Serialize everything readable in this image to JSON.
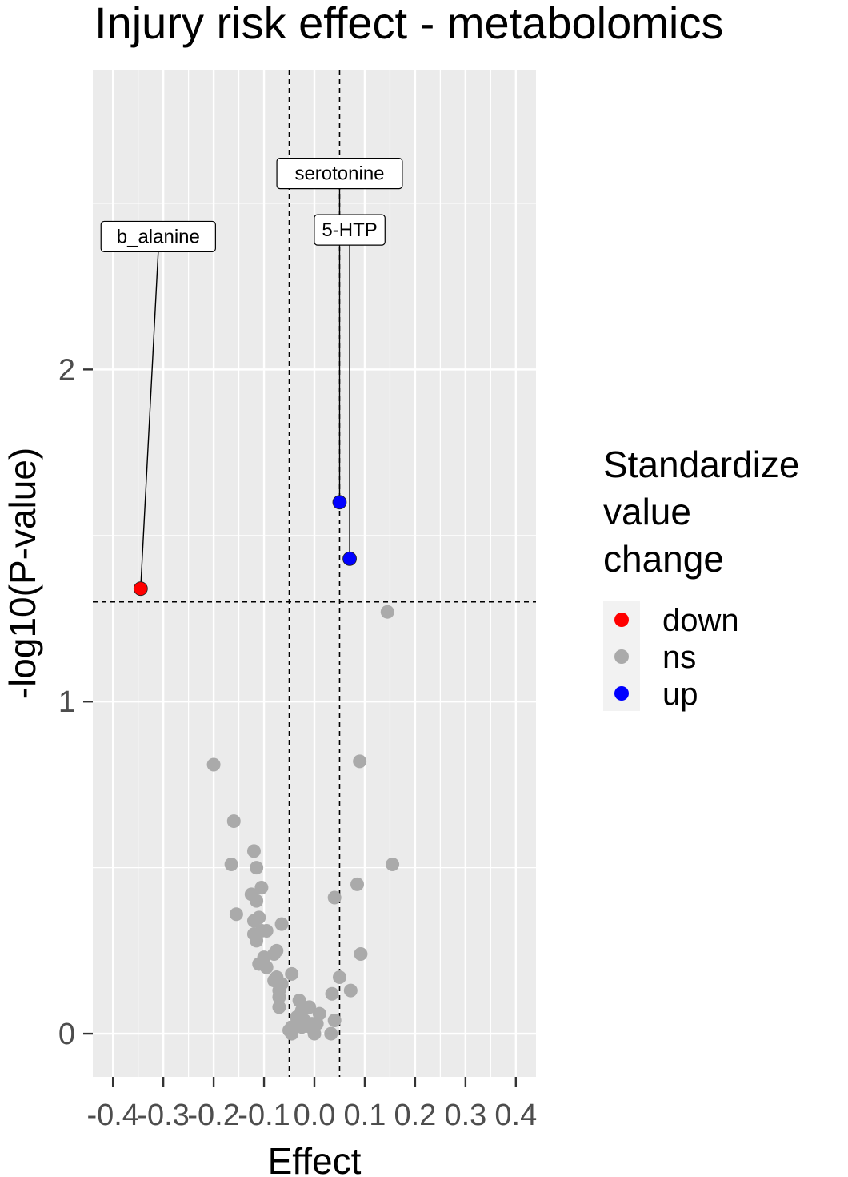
{
  "chart_data": {
    "type": "scatter",
    "title": "Injury risk effect - metabolomics",
    "xlabel": "Effect",
    "ylabel": "-log10(P-value)",
    "xlim": [
      -0.44,
      0.44
    ],
    "ylim": [
      -0.13,
      2.9
    ],
    "x_ticks": [
      -0.4,
      -0.3,
      -0.2,
      -0.1,
      0.0,
      0.1,
      0.2,
      0.3,
      0.4
    ],
    "x_tick_labels": [
      "-0.4",
      "-0.3",
      "-0.2",
      "-0.1",
      "0.0",
      "0.1",
      "0.2",
      "0.3",
      "0.4"
    ],
    "y_ticks": [
      0,
      1,
      2
    ],
    "y_tick_labels": [
      "0",
      "1",
      "2"
    ],
    "grid": true,
    "threshold_lines": {
      "vertical": [
        -0.05,
        0.05
      ],
      "horizontal": [
        1.3
      ]
    },
    "legend": {
      "title": "Standardize value change",
      "title_lines": [
        "Standardize",
        "value",
        "change"
      ],
      "position": "right",
      "items": [
        {
          "label": "down",
          "color": "#ff0000"
        },
        {
          "label": "ns",
          "color": "#aaaaaa"
        },
        {
          "label": "up",
          "color": "#0000ff"
        }
      ]
    },
    "colors": {
      "down": "#ff0000",
      "ns": "#aaaaaa",
      "up": "#0000ff"
    },
    "series": [
      {
        "name": "down",
        "points": [
          {
            "x": -0.345,
            "y": 1.34,
            "label": "b_alanine",
            "label_y": 2.4
          }
        ]
      },
      {
        "name": "up",
        "points": [
          {
            "x": 0.05,
            "y": 1.6,
            "label": "serotonine",
            "label_y": 2.59
          },
          {
            "x": 0.07,
            "y": 1.43,
            "label": "5-HTP",
            "label_y": 2.42
          }
        ]
      },
      {
        "name": "ns",
        "points": [
          {
            "x": 0.145,
            "y": 1.27
          },
          {
            "x": 0.09,
            "y": 0.82
          },
          {
            "x": -0.2,
            "y": 0.81
          },
          {
            "x": -0.16,
            "y": 0.64
          },
          {
            "x": 0.155,
            "y": 0.51
          },
          {
            "x": -0.12,
            "y": 0.55
          },
          {
            "x": -0.165,
            "y": 0.51
          },
          {
            "x": -0.115,
            "y": 0.5
          },
          {
            "x": 0.085,
            "y": 0.45
          },
          {
            "x": -0.105,
            "y": 0.44
          },
          {
            "x": 0.04,
            "y": 0.41
          },
          {
            "x": -0.125,
            "y": 0.42
          },
          {
            "x": -0.115,
            "y": 0.4
          },
          {
            "x": -0.155,
            "y": 0.36
          },
          {
            "x": -0.12,
            "y": 0.34
          },
          {
            "x": -0.11,
            "y": 0.35
          },
          {
            "x": -0.065,
            "y": 0.33
          },
          {
            "x": -0.105,
            "y": 0.31
          },
          {
            "x": -0.12,
            "y": 0.3
          },
          {
            "x": -0.095,
            "y": 0.31
          },
          {
            "x": -0.115,
            "y": 0.28
          },
          {
            "x": -0.075,
            "y": 0.25
          },
          {
            "x": -0.08,
            "y": 0.24
          },
          {
            "x": -0.1,
            "y": 0.23
          },
          {
            "x": 0.092,
            "y": 0.24
          },
          {
            "x": -0.11,
            "y": 0.21
          },
          {
            "x": -0.095,
            "y": 0.2
          },
          {
            "x": -0.045,
            "y": 0.18
          },
          {
            "x": -0.075,
            "y": 0.17
          },
          {
            "x": 0.05,
            "y": 0.17
          },
          {
            "x": -0.08,
            "y": 0.16
          },
          {
            "x": -0.065,
            "y": 0.15
          },
          {
            "x": -0.07,
            "y": 0.13
          },
          {
            "x": 0.072,
            "y": 0.13
          },
          {
            "x": 0.035,
            "y": 0.12
          },
          {
            "x": -0.07,
            "y": 0.11
          },
          {
            "x": -0.03,
            "y": 0.1
          },
          {
            "x": -0.07,
            "y": 0.08
          },
          {
            "x": -0.025,
            "y": 0.07
          },
          {
            "x": -0.01,
            "y": 0.08
          },
          {
            "x": 0.01,
            "y": 0.06
          },
          {
            "x": -0.035,
            "y": 0.05
          },
          {
            "x": -0.02,
            "y": 0.04
          },
          {
            "x": 0.04,
            "y": 0.04
          },
          {
            "x": -0.005,
            "y": 0.03
          },
          {
            "x": 0.005,
            "y": 0.03
          },
          {
            "x": -0.045,
            "y": 0.02
          },
          {
            "x": -0.025,
            "y": 0.02
          },
          {
            "x": -0.008,
            "y": 0.02
          },
          {
            "x": -0.05,
            "y": 0.01
          },
          {
            "x": 0.0,
            "y": 0.0
          },
          {
            "x": 0.033,
            "y": 0.0
          },
          {
            "x": -0.045,
            "y": 0.0
          }
        ]
      }
    ]
  }
}
